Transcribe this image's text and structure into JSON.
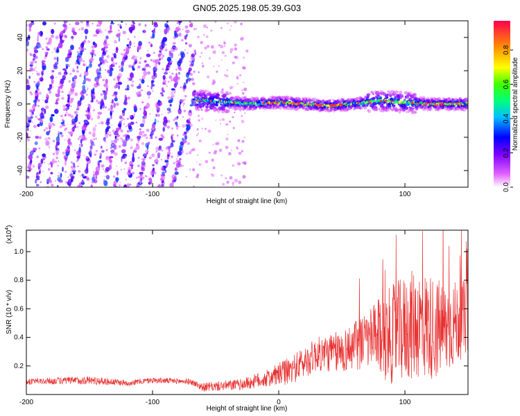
{
  "title": "GN05.2025.198.05.39.G03",
  "chart_data": [
    {
      "type": "heatmap",
      "xlabel": "Height of straight line (km)",
      "ylabel": "Frequency (Hz)",
      "xlim": [
        -200,
        150
      ],
      "ylim": [
        -50,
        50
      ],
      "xticks": [
        -200,
        -100,
        0,
        100
      ],
      "yticks": [
        -40,
        -20,
        0,
        20,
        40
      ],
      "colorbar": {
        "label": "Normalized spectral amplitude",
        "range": [
          0,
          0.97
        ],
        "ticks": [
          0.0,
          0.2,
          0.4,
          0.6,
          0.8
        ],
        "tick_labels": [
          "0.0",
          "0.2",
          "0.4",
          "0.6",
          "0.8"
        ]
      },
      "features": {
        "stripe_region_x": [
          -200,
          -65
        ],
        "stripe_tilt_hz_per_km": 1.8,
        "stripe_amplitude_range": [
          0.05,
          0.35
        ],
        "band_region_x": [
          -65,
          150
        ],
        "band_center_hz": [
          {
            "x": -60,
            "y": 2
          },
          {
            "x": -40,
            "y": 1
          },
          {
            "x": -20,
            "y": 0
          },
          {
            "x": 0,
            "y": 1
          },
          {
            "x": 20,
            "y": 0
          },
          {
            "x": 40,
            "y": -1
          },
          {
            "x": 60,
            "y": 0
          },
          {
            "x": 80,
            "y": 2
          },
          {
            "x": 100,
            "y": 1
          },
          {
            "x": 120,
            "y": 0
          },
          {
            "x": 150,
            "y": 0
          }
        ],
        "band_peak_amplitude": 0.95
      }
    },
    {
      "type": "line",
      "xlabel": "Height of straight line (km)",
      "ylabel": "SNR (10 * v/v)",
      "multiplier_label": "(x10",
      "multiplier_exp": "4",
      "multiplier_close": ")",
      "xlim": [
        -200,
        150
      ],
      "ylim": [
        0,
        1.15
      ],
      "xticks": [
        -200,
        -100,
        0,
        100
      ],
      "yticks": [
        0.2,
        0.4,
        0.6,
        0.8,
        1.0
      ],
      "ytick_labels": [
        "0.2",
        "0.4",
        "0.6",
        "0.8",
        "1.0"
      ],
      "series": [
        {
          "color": "#e83030",
          "envelope": [
            {
              "x": -200,
              "mean": 0.09,
              "spread": 0.02
            },
            {
              "x": -150,
              "mean": 0.1,
              "spread": 0.03
            },
            {
              "x": -120,
              "mean": 0.08,
              "spread": 0.02
            },
            {
              "x": -100,
              "mean": 0.1,
              "spread": 0.02
            },
            {
              "x": -70,
              "mean": 0.09,
              "spread": 0.02
            },
            {
              "x": -60,
              "mean": 0.05,
              "spread": 0.03
            },
            {
              "x": -30,
              "mean": 0.07,
              "spread": 0.04
            },
            {
              "x": -10,
              "mean": 0.11,
              "spread": 0.06
            },
            {
              "x": 10,
              "mean": 0.17,
              "spread": 0.1
            },
            {
              "x": 30,
              "mean": 0.28,
              "spread": 0.12
            },
            {
              "x": 50,
              "mean": 0.3,
              "spread": 0.15
            },
            {
              "x": 70,
              "mean": 0.38,
              "spread": 0.2
            },
            {
              "x": 90,
              "mean": 0.42,
              "spread": 0.35
            },
            {
              "x": 110,
              "mean": 0.5,
              "spread": 0.4
            },
            {
              "x": 130,
              "mean": 0.45,
              "spread": 0.35
            },
            {
              "x": 150,
              "mean": 0.55,
              "spread": 0.25
            }
          ],
          "samples_per_km": 4
        }
      ]
    }
  ]
}
